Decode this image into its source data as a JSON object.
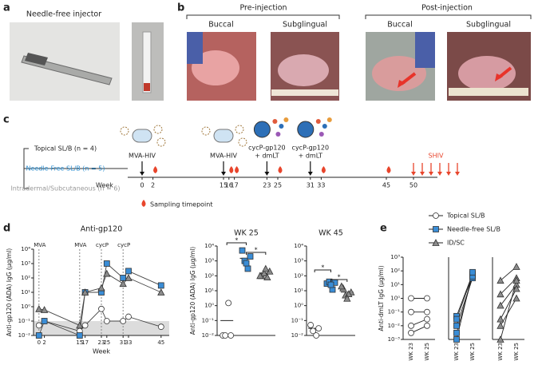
{
  "panel_labels": [
    "a",
    "b",
    "c",
    "d",
    "e"
  ],
  "panel_a": {
    "title": "Needle-free injector"
  },
  "panel_b": {
    "groups": [
      {
        "title": "Pre-injection",
        "sites": [
          "Buccal",
          "Subglingual"
        ]
      },
      {
        "title": "Post-injection",
        "sites": [
          "Buccal",
          "Subglingual"
        ]
      }
    ]
  },
  "panel_c": {
    "cohorts": [
      {
        "label": "Topical SL/B (n = 4)",
        "color": "#222222"
      },
      {
        "label": "Needle-Free SL/B (n = 5)",
        "color": "#2f8fd0"
      },
      {
        "label": "Intradermal/Subcutaneous (n = 6)",
        "color": "#999999"
      }
    ],
    "x_label": "Week",
    "weeks": [
      0,
      2,
      15,
      16,
      17,
      23,
      25,
      31,
      33,
      45,
      50
    ],
    "sampled": [
      false,
      true,
      false,
      true,
      true,
      false,
      true,
      false,
      true,
      true,
      false
    ],
    "events": [
      {
        "week": 0,
        "label": [
          "MVA-HIV"
        ]
      },
      {
        "week": 15,
        "label": [
          "MVA-HIV"
        ]
      },
      {
        "week": 23,
        "label": [
          "cycP-gp120",
          "+ dmLT"
        ]
      },
      {
        "week": 31,
        "label": [
          "cycP-gp120",
          "+ dmLT"
        ]
      }
    ],
    "challenge": {
      "week": 50,
      "label": "SHIV",
      "color": "#e8452c"
    },
    "sampling_legend": "Sampling timepoint"
  },
  "chart_data": [
    {
      "type": "line",
      "title": "Anti-gp120",
      "x_label": "Week",
      "y_label": "Anti-gp120 (ADA) IgG (μg/ml)",
      "log_y": true,
      "x": [
        0,
        2,
        15,
        17,
        23,
        25,
        31,
        33,
        45
      ],
      "xlim": [
        -2,
        48
      ],
      "xticks": [
        0,
        2,
        15,
        17,
        23,
        25,
        31,
        33,
        45
      ],
      "ylim": [
        0.01,
        10000
      ],
      "yticks": [
        {
          "value": 0.01,
          "label": "10⁻²"
        },
        {
          "value": 0.1,
          "label": "10⁻¹"
        },
        {
          "value": 1,
          "label": "10⁰"
        },
        {
          "value": 10,
          "label": "10¹"
        },
        {
          "value": 100,
          "label": "10²"
        },
        {
          "value": 1000,
          "label": "10³"
        },
        {
          "value": 10000,
          "label": "10⁴"
        }
      ],
      "shade_below": 0.1,
      "annotations": [
        {
          "text": "MVA",
          "x": 0
        },
        {
          "text": "MVA",
          "x": 15
        },
        {
          "text": "cycP",
          "x": 23
        },
        {
          "text": "cycP",
          "x": 31
        }
      ],
      "series": [
        {
          "marker": "circle",
          "color": "#ffffff",
          "values": [
            0.05,
            0.1,
            0.02,
            0.05,
            0.7,
            0.1,
            0.1,
            0.2,
            0.04
          ]
        },
        {
          "marker": "square",
          "color": "#3a8dd6",
          "values": [
            0.01,
            0.1,
            0.01,
            10,
            10,
            1000,
            100,
            300,
            30
          ]
        },
        {
          "marker": "triangle",
          "color": "#8c8c8c",
          "values": [
            0.7,
            0.6,
            0.05,
            10,
            20,
            200,
            40,
            100,
            10
          ]
        }
      ]
    },
    {
      "type": "dot",
      "title": "WK 25",
      "y_label": "Anti-gp120 (ADA) IgG (μg/ml)",
      "log_y": true,
      "ylim": [
        0.01,
        10000
      ],
      "yticks": [
        {
          "value": 0.01,
          "label": "10⁻²"
        },
        {
          "value": 0.1,
          "label": "10⁻¹"
        },
        {
          "value": 1,
          "label": "10⁰"
        },
        {
          "value": 10,
          "label": "10¹"
        },
        {
          "value": 100,
          "label": "10²"
        },
        {
          "value": 1000,
          "label": "10³"
        },
        {
          "value": 10000,
          "label": "10⁴"
        }
      ],
      "annotations": [
        "*",
        "*"
      ],
      "series": [
        {
          "marker": "circle",
          "color": "#ffffff",
          "values": [
            0.01,
            0.01,
            0.01,
            1.5
          ],
          "center": 0.1
        },
        {
          "marker": "square",
          "color": "#3a8dd6",
          "values": [
            5000,
            2000,
            1000,
            300,
            700
          ],
          "center": 1500
        },
        {
          "marker": "triangle",
          "color": "#8c8c8c",
          "values": [
            100,
            200,
            150,
            80,
            300,
            100
          ],
          "center": 150
        }
      ]
    },
    {
      "type": "dot",
      "title": "WK 45",
      "log_y": true,
      "ylim": [
        0.01,
        10000
      ],
      "yticks": [
        {
          "value": 0.01,
          "label": "10⁻²"
        },
        {
          "value": 0.1,
          "label": "10⁻¹"
        },
        {
          "value": 1,
          "label": "10⁰"
        },
        {
          "value": 10,
          "label": "10¹"
        },
        {
          "value": 100,
          "label": "10²"
        },
        {
          "value": 1000,
          "label": "10³"
        },
        {
          "value": 10000,
          "label": "10⁴"
        }
      ],
      "annotations": [
        "*",
        "*"
      ],
      "series": [
        {
          "marker": "circle",
          "color": "#ffffff",
          "values": [
            0.05,
            0.03,
            0.02,
            0.01
          ],
          "center": 0.03
        },
        {
          "marker": "square",
          "color": "#3a8dd6",
          "values": [
            30,
            35,
            40,
            12,
            25
          ],
          "center": 30
        },
        {
          "marker": "triangle",
          "color": "#8c8c8c",
          "values": [
            15,
            8,
            5,
            6,
            3,
            20
          ],
          "center": 8
        }
      ]
    },
    {
      "type": "paired",
      "name": "Topical SL/B",
      "marker": "circle",
      "color": "#ffffff",
      "y_label": "Anti-dmLT IgG (μg/ml)",
      "log_y": true,
      "categories": [
        "WK 23",
        "WK 25"
      ],
      "ylim": [
        0.001,
        1000
      ],
      "yticks": [
        {
          "value": 0.001,
          "label": "10⁻³"
        },
        {
          "value": 0.01,
          "label": "10⁻²"
        },
        {
          "value": 0.1,
          "label": "10⁻¹"
        },
        {
          "value": 1,
          "label": "10⁰"
        },
        {
          "value": 10,
          "label": "10¹"
        },
        {
          "value": 100,
          "label": "10²"
        },
        {
          "value": 1000,
          "label": "10³"
        }
      ],
      "values": [
        [
          1,
          1
        ],
        [
          0.1,
          0.1
        ],
        [
          0.01,
          0.03
        ],
        [
          0.003,
          0.01
        ]
      ]
    },
    {
      "type": "paired",
      "name": "Needle-free SL/B",
      "marker": "square",
      "color": "#3a8dd6",
      "log_y": true,
      "categories": [
        "WK 23",
        "WK 25"
      ],
      "ylim": [
        0.001,
        1000
      ],
      "values": [
        [
          0.05,
          60
        ],
        [
          0.03,
          50
        ],
        [
          0.01,
          30
        ],
        [
          0.003,
          40
        ],
        [
          0.001,
          80
        ]
      ]
    },
    {
      "type": "paired",
      "name": "ID/SC",
      "marker": "triangle",
      "color": "#8c8c8c",
      "log_y": true,
      "categories": [
        "WK 23",
        "WK 25"
      ],
      "ylim": [
        0.001,
        1000
      ],
      "values": [
        [
          20,
          200
        ],
        [
          2,
          30
        ],
        [
          0.3,
          10
        ],
        [
          0.03,
          5
        ],
        [
          0.01,
          1
        ],
        [
          0.001,
          20
        ]
      ]
    }
  ]
}
